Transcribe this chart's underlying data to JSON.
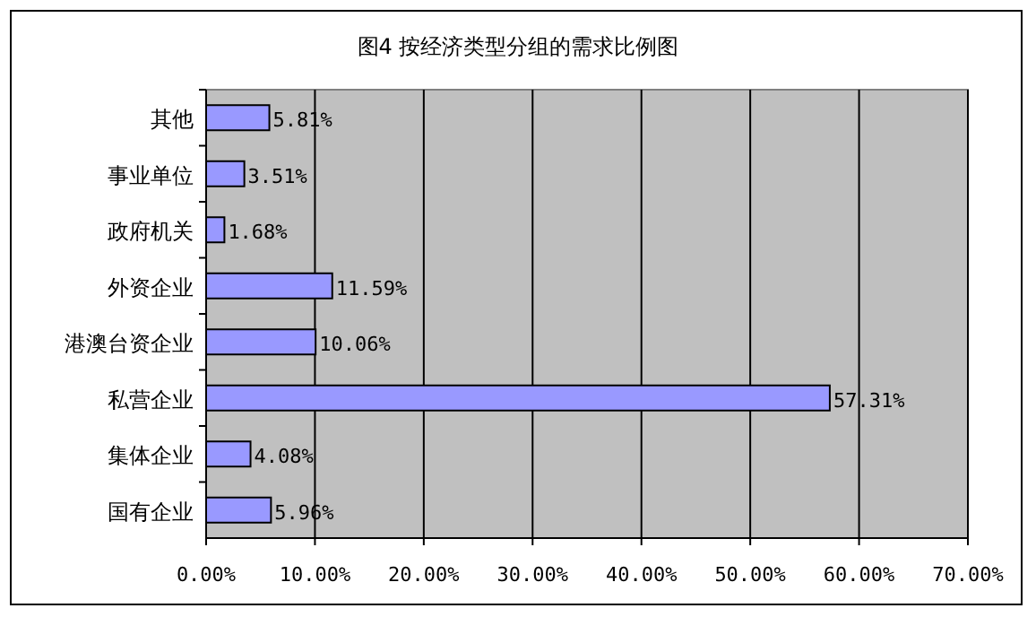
{
  "chart_data": {
    "type": "bar",
    "orientation": "horizontal",
    "title": "图4 按经济类型分组的需求比例图",
    "categories": [
      "其他",
      "事业单位",
      "政府机关",
      "外资企业",
      "港澳台资企业",
      "私营企业",
      "集体企业",
      "国有企业"
    ],
    "values": [
      5.81,
      3.51,
      1.68,
      11.59,
      10.06,
      57.31,
      4.08,
      5.96
    ],
    "value_labels": [
      "5.81%",
      "3.51%",
      "1.68%",
      "11.59%",
      "10.06%",
      "57.31%",
      "4.08%",
      "5.96%"
    ],
    "color": "#9999ff",
    "xlim": [
      0,
      70
    ],
    "xticks": [
      {
        "value": 0,
        "label": "0.00%"
      },
      {
        "value": 10,
        "label": "10.00%"
      },
      {
        "value": 20,
        "label": "20.00%"
      },
      {
        "value": 30,
        "label": "30.00%"
      },
      {
        "value": 40,
        "label": "40.00%"
      },
      {
        "value": 50,
        "label": "50.00%"
      },
      {
        "value": 60,
        "label": "60.00%"
      },
      {
        "value": 70,
        "label": "70.00%"
      }
    ],
    "grid": "x"
  }
}
